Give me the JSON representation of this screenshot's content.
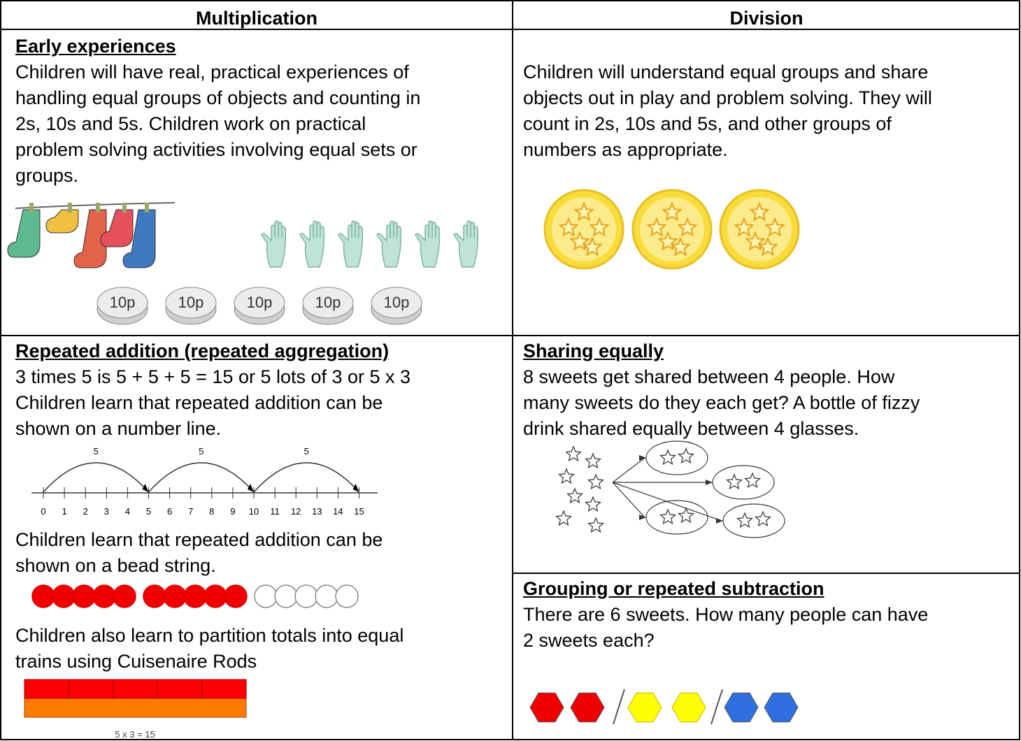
{
  "table": {
    "headers": [
      "Multiplication",
      "Division"
    ],
    "multiplication": {
      "early": {
        "heading": "Early experiences",
        "lines": [
          "Children will have real, practical experiences of",
          "handling equal groups of objects and counting in",
          "2s, 10s and 5s. Children work on practical",
          "problem solving activities involving equal sets or",
          "groups."
        ],
        "coin_label": "10p"
      },
      "repeated": {
        "heading": "Repeated addition (repeated aggregation)",
        "lines": [
          "3 times 5 is 5 + 5 + 5 = 15 or 5 lots of 3 or 5 x 3",
          "Children learn that repeated addition can be",
          "shown on a number line."
        ],
        "jump_label": "5",
        "number_line": [
          0,
          1,
          2,
          3,
          4,
          5,
          6,
          7,
          8,
          9,
          10,
          11,
          12,
          13,
          14,
          15
        ],
        "bead_lines": [
          "Children learn that repeated addition can be",
          "shown on a bead string."
        ],
        "rod_lines": [
          "Children also learn to partition totals into equal",
          "trains using Cuisenaire Rods"
        ],
        "rod_caption": "5 x 3 = 15"
      }
    },
    "division": {
      "early": {
        "lines": [
          "Children will understand equal groups and share",
          "objects out in play and problem solving. They will",
          "count in 2s, 10s and 5s, and other groups of",
          "numbers as appropriate."
        ]
      },
      "sharing": {
        "heading": "Sharing equally",
        "lines": [
          "8 sweets get shared between 4 people. How",
          "many sweets do they each get? A bottle of fizzy",
          "drink shared equally between 4 glasses."
        ]
      },
      "grouping": {
        "heading": "Grouping or repeated subtraction",
        "lines": [
          "There are 6 sweets. How many people can have",
          "2 sweets each?"
        ]
      }
    }
  }
}
